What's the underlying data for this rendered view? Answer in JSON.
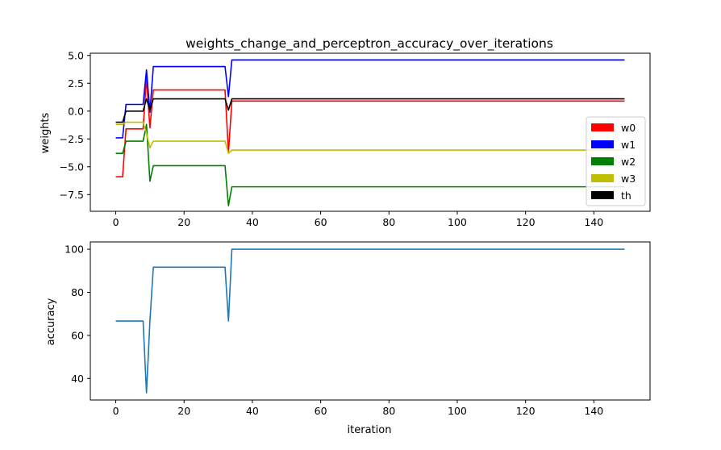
{
  "chart_data": [
    {
      "type": "line",
      "title": "weights_change_and_perceptron_accuracy_over_iterations",
      "xlabel": "",
      "ylabel": "weights",
      "xlim": [
        -7.45,
        156.45
      ],
      "ylim": [
        -9.0,
        5.2
      ],
      "xticks": [
        0,
        20,
        40,
        60,
        80,
        100,
        120,
        140
      ],
      "yticks": [
        -7.5,
        -5.0,
        -2.5,
        0.0,
        2.5,
        5.0
      ],
      "ytick_labels": [
        "−7.5",
        "−5.0",
        "−2.5",
        "0.0",
        "2.5",
        "5.0"
      ],
      "grid": false,
      "legend_position": "center-right",
      "series": [
        {
          "name": "w0",
          "color": "#ff0000",
          "points": [
            [
              0,
              -5.9
            ],
            [
              1,
              -5.9
            ],
            [
              2,
              -5.9
            ],
            [
              3,
              -1.6
            ],
            [
              4,
              -1.6
            ],
            [
              8,
              -1.6
            ],
            [
              9,
              3.0
            ],
            [
              10,
              -1.5
            ],
            [
              11,
              1.9
            ],
            [
              32,
              1.9
            ],
            [
              33,
              -3.7
            ],
            [
              34,
              0.9
            ],
            [
              149,
              0.9
            ]
          ]
        },
        {
          "name": "w1",
          "color": "#0000ff",
          "points": [
            [
              0,
              -2.4
            ],
            [
              1,
              -2.4
            ],
            [
              2,
              -2.4
            ],
            [
              3,
              0.6
            ],
            [
              4,
              0.6
            ],
            [
              8,
              0.6
            ],
            [
              9,
              3.7
            ],
            [
              10,
              -0.1
            ],
            [
              11,
              4.0
            ],
            [
              32,
              4.0
            ],
            [
              33,
              1.3
            ],
            [
              34,
              4.6
            ],
            [
              149,
              4.6
            ]
          ]
        },
        {
          "name": "w2",
          "color": "#008000",
          "points": [
            [
              0,
              -3.8
            ],
            [
              1,
              -3.8
            ],
            [
              2,
              -3.8
            ],
            [
              3,
              -2.7
            ],
            [
              4,
              -2.7
            ],
            [
              8,
              -2.7
            ],
            [
              9,
              -1.2
            ],
            [
              10,
              -6.3
            ],
            [
              11,
              -4.9
            ],
            [
              32,
              -4.9
            ],
            [
              33,
              -8.5
            ],
            [
              34,
              -6.8
            ],
            [
              149,
              -6.8
            ]
          ]
        },
        {
          "name": "w3",
          "color": "#bfbf00",
          "points": [
            [
              0,
              -1.2
            ],
            [
              1,
              -1.2
            ],
            [
              2,
              -1.2
            ],
            [
              3,
              -1.0
            ],
            [
              4,
              -1.0
            ],
            [
              8,
              -1.0
            ],
            [
              9,
              -2.0
            ],
            [
              10,
              -3.3
            ],
            [
              11,
              -2.7
            ],
            [
              32,
              -2.7
            ],
            [
              33,
              -3.8
            ],
            [
              34,
              -3.5
            ],
            [
              149,
              -3.5
            ]
          ]
        },
        {
          "name": "th",
          "color": "#000000",
          "points": [
            [
              0,
              -1.0
            ],
            [
              1,
              -1.0
            ],
            [
              2,
              -1.0
            ],
            [
              3,
              0.0
            ],
            [
              4,
              0.0
            ],
            [
              8,
              0.0
            ],
            [
              9,
              1.1
            ],
            [
              10,
              0.1
            ],
            [
              11,
              1.1
            ],
            [
              32,
              1.1
            ],
            [
              33,
              0.1
            ],
            [
              34,
              1.1
            ],
            [
              149,
              1.1
            ]
          ]
        }
      ]
    },
    {
      "type": "line",
      "title": "",
      "xlabel": "iteration",
      "ylabel": "accuracy",
      "xlim": [
        -7.45,
        156.45
      ],
      "ylim": [
        30.0,
        103.4
      ],
      "xticks": [
        0,
        20,
        40,
        60,
        80,
        100,
        120,
        140
      ],
      "yticks": [
        40,
        60,
        80,
        100
      ],
      "ytick_labels": [
        "40",
        "60",
        "80",
        "100"
      ],
      "grid": false,
      "series": [
        {
          "color": "#1f77b4",
          "points": [
            [
              0,
              66.67
            ],
            [
              1,
              66.67
            ],
            [
              8,
              66.67
            ],
            [
              9,
              33.33
            ],
            [
              10,
              66.67
            ],
            [
              11,
              91.67
            ],
            [
              32,
              91.67
            ],
            [
              33,
              66.67
            ],
            [
              34,
              100.0
            ],
            [
              149,
              100.0
            ]
          ]
        }
      ]
    }
  ]
}
